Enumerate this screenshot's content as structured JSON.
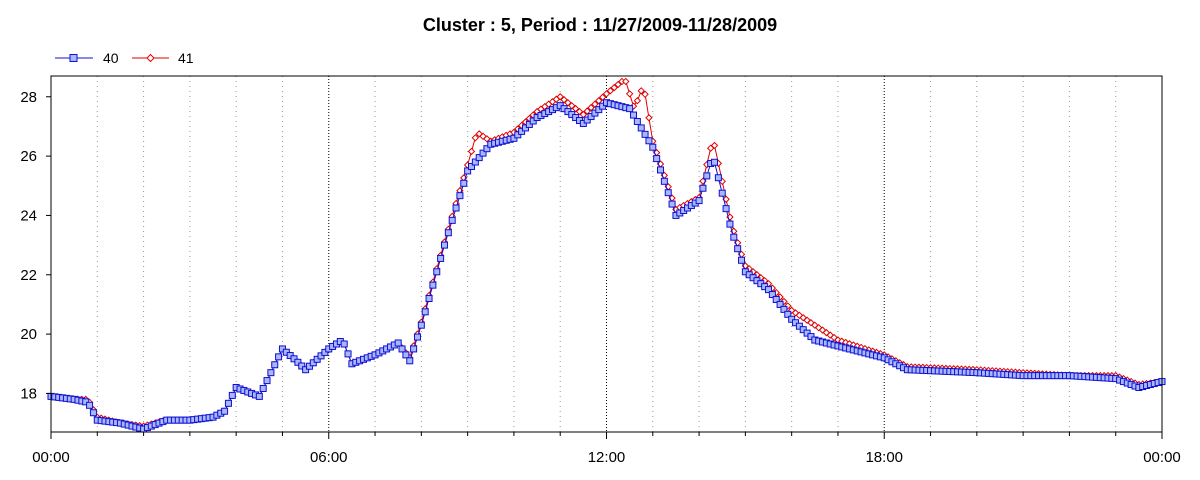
{
  "chart_data": {
    "type": "line",
    "title": "Cluster : 5, Period : 11/27/2009-11/28/2009",
    "xlabel": "",
    "ylabel": "",
    "x_ticks": [
      "00:00",
      "06:00",
      "12:00",
      "18:00",
      "00:00"
    ],
    "x_tick_hours": [
      0,
      6,
      12,
      18,
      24
    ],
    "y_ticks": [
      18,
      20,
      22,
      24,
      26,
      28
    ],
    "xlim": [
      0,
      24
    ],
    "ylim": [
      16.7,
      28.7
    ],
    "grid": "dotted vertical",
    "legend_position": "top-left",
    "series": [
      {
        "name": "40",
        "color": "#1010d0",
        "marker": "square",
        "points": [
          [
            0.0,
            17.9
          ],
          [
            0.5,
            17.8
          ],
          [
            0.8,
            17.7
          ],
          [
            1.0,
            17.1
          ],
          [
            1.5,
            17.0
          ],
          [
            2.0,
            16.8
          ],
          [
            2.5,
            17.1
          ],
          [
            3.0,
            17.1
          ],
          [
            3.5,
            17.2
          ],
          [
            3.75,
            17.4
          ],
          [
            4.0,
            18.2
          ],
          [
            4.5,
            17.9
          ],
          [
            5.0,
            19.5
          ],
          [
            5.3,
            19.1
          ],
          [
            5.5,
            18.8
          ],
          [
            6.0,
            19.5
          ],
          [
            6.3,
            19.8
          ],
          [
            6.5,
            19.0
          ],
          [
            7.0,
            19.3
          ],
          [
            7.5,
            19.7
          ],
          [
            7.75,
            19.1
          ],
          [
            8.0,
            20.3
          ],
          [
            8.5,
            23.0
          ],
          [
            9.0,
            25.5
          ],
          [
            9.5,
            26.4
          ],
          [
            10.0,
            26.6
          ],
          [
            10.5,
            27.3
          ],
          [
            11.0,
            27.7
          ],
          [
            11.5,
            27.1
          ],
          [
            12.0,
            27.8
          ],
          [
            12.5,
            27.6
          ],
          [
            13.0,
            26.3
          ],
          [
            13.5,
            24.0
          ],
          [
            14.0,
            24.5
          ],
          [
            14.3,
            26.0
          ],
          [
            14.7,
            23.5
          ],
          [
            15.0,
            22.1
          ],
          [
            15.5,
            21.5
          ],
          [
            16.0,
            20.5
          ],
          [
            16.5,
            19.8
          ],
          [
            17.0,
            19.6
          ],
          [
            18.0,
            19.2
          ],
          [
            18.5,
            18.8
          ],
          [
            20.0,
            18.7
          ],
          [
            21.0,
            18.6
          ],
          [
            22.0,
            18.6
          ],
          [
            23.0,
            18.5
          ],
          [
            23.5,
            18.2
          ],
          [
            24.0,
            18.4
          ]
        ]
      },
      {
        "name": "41",
        "color": "#e00000",
        "marker": "diamond",
        "points": [
          [
            0.0,
            17.9
          ],
          [
            0.5,
            17.8
          ],
          [
            0.8,
            17.8
          ],
          [
            1.0,
            17.2
          ],
          [
            1.5,
            17.0
          ],
          [
            2.0,
            16.9
          ],
          [
            2.5,
            17.1
          ],
          [
            3.0,
            17.1
          ],
          [
            3.5,
            17.2
          ],
          [
            3.75,
            17.4
          ],
          [
            4.0,
            18.2
          ],
          [
            4.5,
            17.9
          ],
          [
            5.0,
            19.5
          ],
          [
            5.3,
            19.1
          ],
          [
            5.5,
            18.8
          ],
          [
            6.0,
            19.5
          ],
          [
            6.3,
            19.8
          ],
          [
            6.5,
            19.0
          ],
          [
            7.0,
            19.3
          ],
          [
            7.5,
            19.7
          ],
          [
            7.75,
            19.2
          ],
          [
            8.0,
            20.4
          ],
          [
            8.5,
            23.1
          ],
          [
            9.0,
            25.7
          ],
          [
            9.2,
            26.8
          ],
          [
            9.5,
            26.5
          ],
          [
            10.0,
            26.8
          ],
          [
            10.5,
            27.5
          ],
          [
            11.0,
            28.0
          ],
          [
            11.5,
            27.4
          ],
          [
            12.0,
            28.1
          ],
          [
            12.4,
            28.6
          ],
          [
            12.6,
            27.6
          ],
          [
            12.8,
            28.4
          ],
          [
            13.0,
            26.5
          ],
          [
            13.5,
            24.2
          ],
          [
            14.0,
            24.6
          ],
          [
            14.3,
            26.6
          ],
          [
            14.7,
            23.7
          ],
          [
            15.0,
            22.3
          ],
          [
            15.5,
            21.7
          ],
          [
            16.0,
            20.8
          ],
          [
            17.0,
            19.8
          ],
          [
            18.0,
            19.3
          ],
          [
            18.5,
            18.9
          ],
          [
            20.0,
            18.8
          ],
          [
            21.0,
            18.7
          ],
          [
            22.0,
            18.6
          ],
          [
            23.0,
            18.6
          ],
          [
            23.5,
            18.3
          ],
          [
            24.0,
            18.4
          ]
        ]
      }
    ]
  }
}
